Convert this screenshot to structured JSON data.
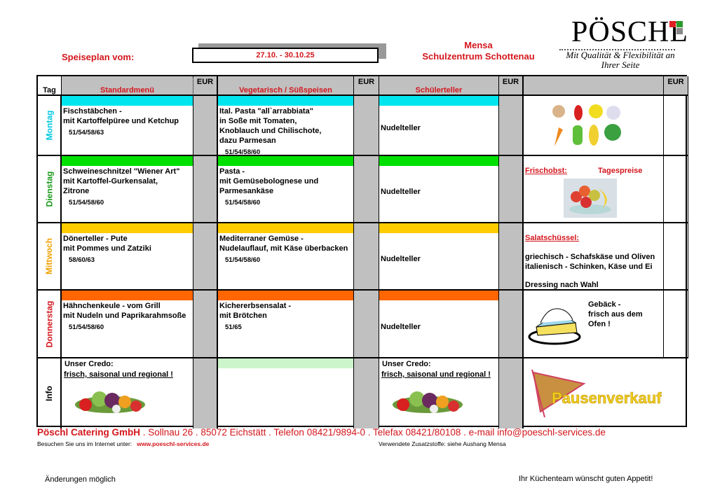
{
  "header": {
    "title_label": "Speiseplan vom:",
    "date_range": "27.10. - 30.10.25",
    "location_line1": "Mensa",
    "location_line2": "Schulzentrum Schottenau",
    "logo": {
      "wordmark": "PÖSCHL",
      "tagline": "Mit Qualität & Flexibilität an Ihrer Seite"
    }
  },
  "columns": {
    "tag": "Tag",
    "standard": "Standardmenü",
    "vegetarian": "Vegetarisch / Süßspeisen",
    "pupil": "Schülerteller",
    "currency": "EUR"
  },
  "days": [
    {
      "name": "Montag",
      "color": "#00e5ee",
      "standard": "Fischstäbchen -\nmit Kartoffelpüree und Ketchup",
      "standard_codes": "51/54/58/63",
      "vegetarian": "Ital. Pasta \"all`arrabbiata\"\nin Soße mit Tomaten,\nKnoblauch und Chilischote,\ndazu Parmesan",
      "vegetarian_codes": "51/54/58/60",
      "pupil": "Nudelteller"
    },
    {
      "name": "Dienstag",
      "color": "#00e000",
      "standard": "Schweineschnitzel \"Wiener Art\"\nmit Kartoffel-Gurkensalat,\nZitrone",
      "standard_codes": "51/54/58/60",
      "vegetarian": "Pasta -\nmit Gemüsebolognese und\nParmesankäse",
      "vegetarian_codes": "51/54/58/60",
      "pupil": "Nudelteller"
    },
    {
      "name": "Mittwoch",
      "color": "#ffcc00",
      "standard": "Dönerteller - Pute\nmit Pommes und Zatziki",
      "standard_codes": "58/60/63",
      "vegetarian": "Mediterraner Gemüse -\nNudelauflauf, mit Käse überbacken",
      "vegetarian_codes": "51/54/58/60",
      "pupil": "Nudelteller"
    },
    {
      "name": "Donnerstag",
      "color": "#ff6600",
      "standard": "Hähnchenkeule - vom Grill\nmit Nudeln und Paprikarahmsoße",
      "standard_codes": "51/54/58/60",
      "vegetarian": "Kichererbsensalat -\nmit Brötchen",
      "vegetarian_codes": "51/65",
      "pupil": "Nudelteller"
    }
  ],
  "day_label_colors": [
    "#00c8e0",
    "#1a9a1a",
    "#f0a000",
    "#d4161c"
  ],
  "extras": {
    "fruit_label": "Frischobst:",
    "fruit_price": "Tagespreise",
    "salad_label": "Salatschüssel:",
    "salad_line1": "griechisch - Schafskäse und Oliven",
    "salad_line2": "italienisch - Schinken, Käse und Ei",
    "salad_line3": "Dressing nach Wahl",
    "pastry": "Gebäck -\n frisch aus dem\n Ofen !"
  },
  "info": {
    "label": "Info",
    "credo_title": "Unser Credo:",
    "credo_text": "frisch, saisonal und regional !",
    "info_bar_color": "#ccf5cc",
    "pausenverkauf": "Pausenverkauf"
  },
  "footer": {
    "company": "Pöschl Catering GmbH",
    "address": " . Sollnau 26 . 85072 Eichstätt . Telefon 08421/9894-0 . Telefax 08421/80108 . e-mail info@poeschl-services.de",
    "visit_label": "Besuchen Sie uns im Internet unter:",
    "website": "www.poeschl-services.de",
    "additives": "Verwendete Zusatzstoffe: siehe Aushang Mensa",
    "changes": "Änderungen möglich",
    "greeting": "Ihr Küchenteam wünscht guten Appetit!"
  }
}
